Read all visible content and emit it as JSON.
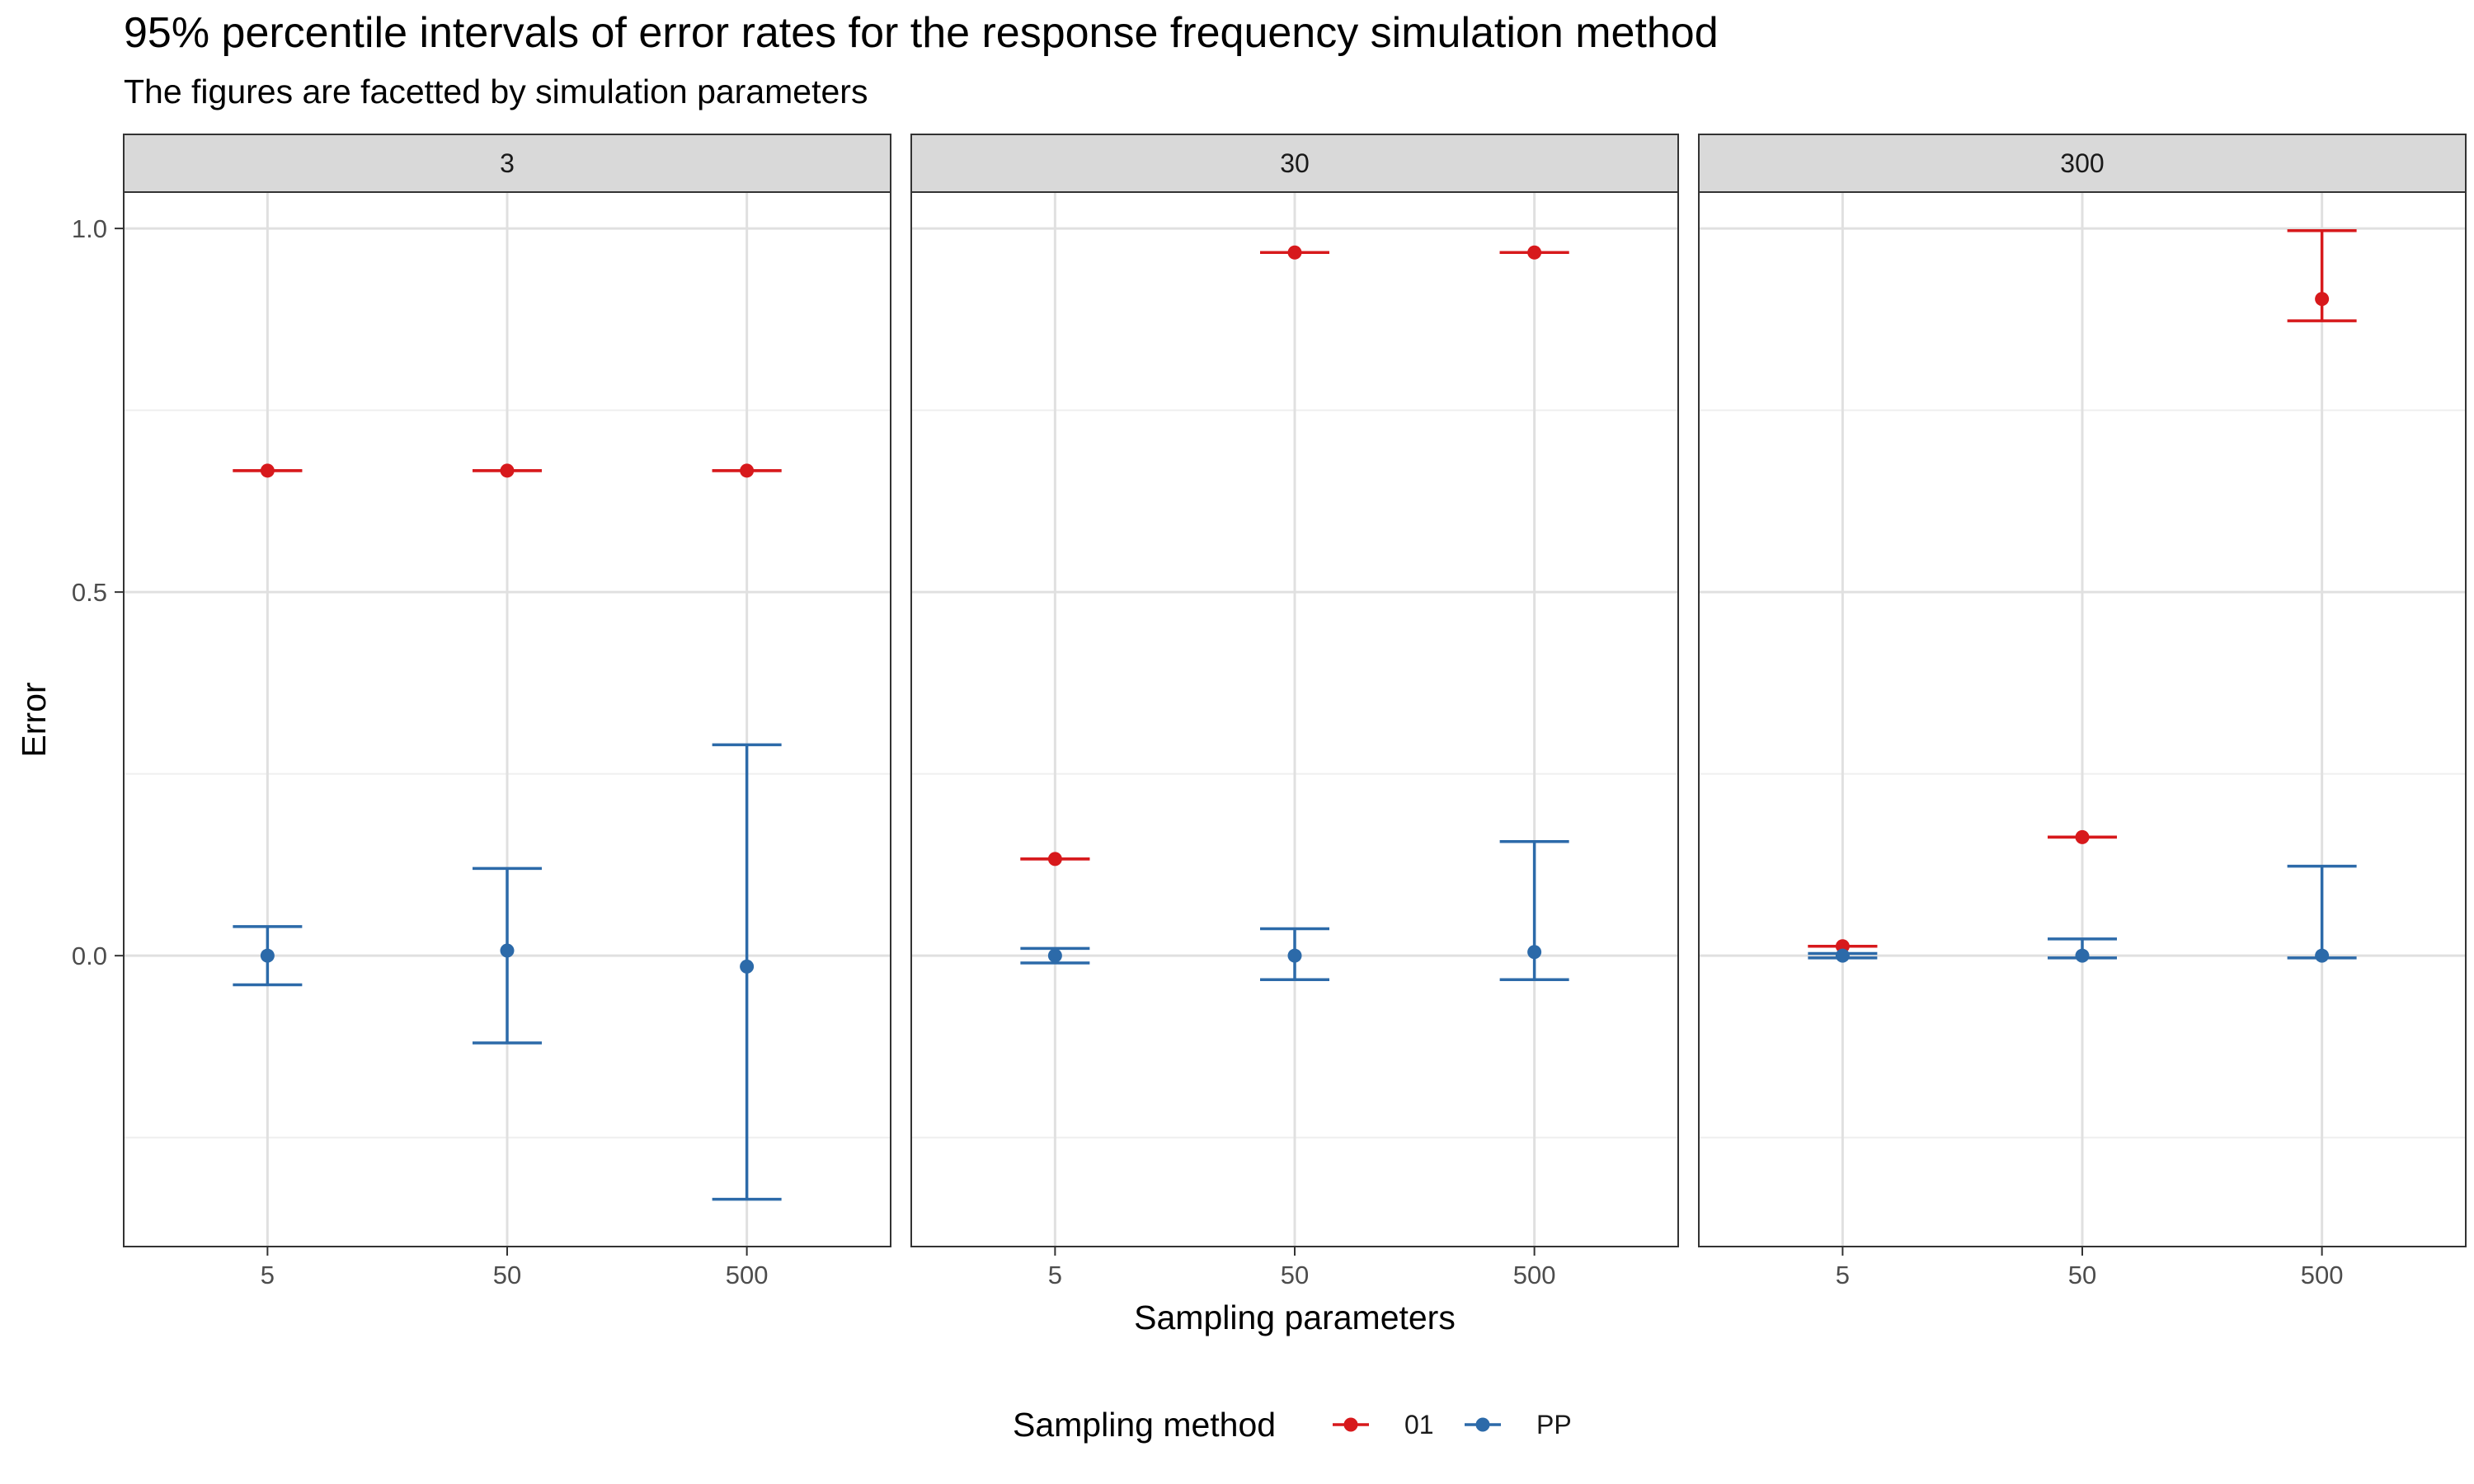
{
  "chart_data": {
    "type": "errorbar",
    "title": "95% percentile intervals of error rates for the response frequency simulation method",
    "subtitle": "The figures are facetted by simulation parameters",
    "xlabel": "Sampling parameters",
    "ylabel": "Error",
    "categories": [
      "5",
      "50",
      "500"
    ],
    "ylim": [
      -0.4,
      1.05
    ],
    "yticks": [
      0.0,
      0.5,
      1.0
    ],
    "ytick_labels": [
      "0.0",
      "0.5",
      "1.0"
    ],
    "grid": true,
    "legend": {
      "title": "Sampling method",
      "position": "bottom",
      "entries": [
        {
          "name": "01",
          "color": "#d7191c"
        },
        {
          "name": "PP",
          "color": "#2c6aa9"
        }
      ]
    },
    "facets": [
      {
        "label": "3",
        "series": [
          {
            "name": "01",
            "color": "#d7191c",
            "points": [
              {
                "x": "5",
                "y": 0.667,
                "lo": 0.667,
                "hi": 0.667
              },
              {
                "x": "50",
                "y": 0.667,
                "lo": 0.667,
                "hi": 0.667
              },
              {
                "x": "500",
                "y": 0.667,
                "lo": 0.667,
                "hi": 0.667
              }
            ]
          },
          {
            "name": "PP",
            "color": "#2c6aa9",
            "points": [
              {
                "x": "5",
                "y": 0.0,
                "lo": -0.04,
                "hi": 0.04
              },
              {
                "x": "50",
                "y": 0.007,
                "lo": -0.12,
                "hi": 0.12
              },
              {
                "x": "500",
                "y": -0.015,
                "lo": -0.335,
                "hi": 0.29
              }
            ]
          }
        ]
      },
      {
        "label": "30",
        "series": [
          {
            "name": "01",
            "color": "#d7191c",
            "points": [
              {
                "x": "5",
                "y": 0.133,
                "lo": 0.133,
                "hi": 0.133
              },
              {
                "x": "50",
                "y": 0.967,
                "lo": 0.967,
                "hi": 0.967
              },
              {
                "x": "500",
                "y": 0.967,
                "lo": 0.967,
                "hi": 0.967
              }
            ]
          },
          {
            "name": "PP",
            "color": "#2c6aa9",
            "points": [
              {
                "x": "5",
                "y": 0.0,
                "lo": -0.01,
                "hi": 0.01
              },
              {
                "x": "50",
                "y": 0.0,
                "lo": -0.033,
                "hi": 0.037
              },
              {
                "x": "500",
                "y": 0.005,
                "lo": -0.033,
                "hi": 0.157
              }
            ]
          }
        ]
      },
      {
        "label": "300",
        "series": [
          {
            "name": "01",
            "color": "#d7191c",
            "points": [
              {
                "x": "5",
                "y": 0.013,
                "lo": 0.013,
                "hi": 0.013
              },
              {
                "x": "50",
                "y": 0.163,
                "lo": 0.163,
                "hi": 0.163
              },
              {
                "x": "500",
                "y": 0.903,
                "lo": 0.873,
                "hi": 0.997
              }
            ]
          },
          {
            "name": "PP",
            "color": "#2c6aa9",
            "points": [
              {
                "x": "5",
                "y": 0.0,
                "lo": -0.003,
                "hi": 0.003
              },
              {
                "x": "50",
                "y": 0.0,
                "lo": -0.003,
                "hi": 0.023
              },
              {
                "x": "500",
                "y": 0.0,
                "lo": -0.003,
                "hi": 0.123
              }
            ]
          }
        ]
      }
    ]
  }
}
